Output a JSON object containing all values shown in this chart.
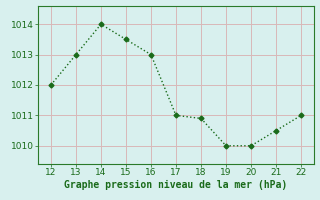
{
  "x": [
    12,
    13,
    14,
    15,
    16,
    17,
    18,
    19,
    20,
    21,
    22
  ],
  "y": [
    1012.0,
    1013.0,
    1014.0,
    1013.5,
    1013.0,
    1011.0,
    1010.9,
    1010.0,
    1010.0,
    1010.5,
    1011.0
  ],
  "line_color": "#1a6b1a",
  "marker": "D",
  "marker_size": 2.5,
  "bg_color": "#d8f0ee",
  "grid_color": "#d8b8b8",
  "xlabel": "Graphe pression niveau de la mer (hPa)",
  "xlabel_color": "#1a6b1a",
  "xlabel_fontsize": 7,
  "xlim": [
    11.5,
    22.5
  ],
  "ylim": [
    1009.4,
    1014.6
  ],
  "xticks": [
    12,
    13,
    14,
    15,
    16,
    17,
    18,
    19,
    20,
    21,
    22
  ],
  "yticks": [
    1010,
    1011,
    1012,
    1013,
    1014
  ],
  "tick_fontsize": 6.5,
  "tick_color": "#1a6b1a",
  "spine_color": "#2a7a2a"
}
